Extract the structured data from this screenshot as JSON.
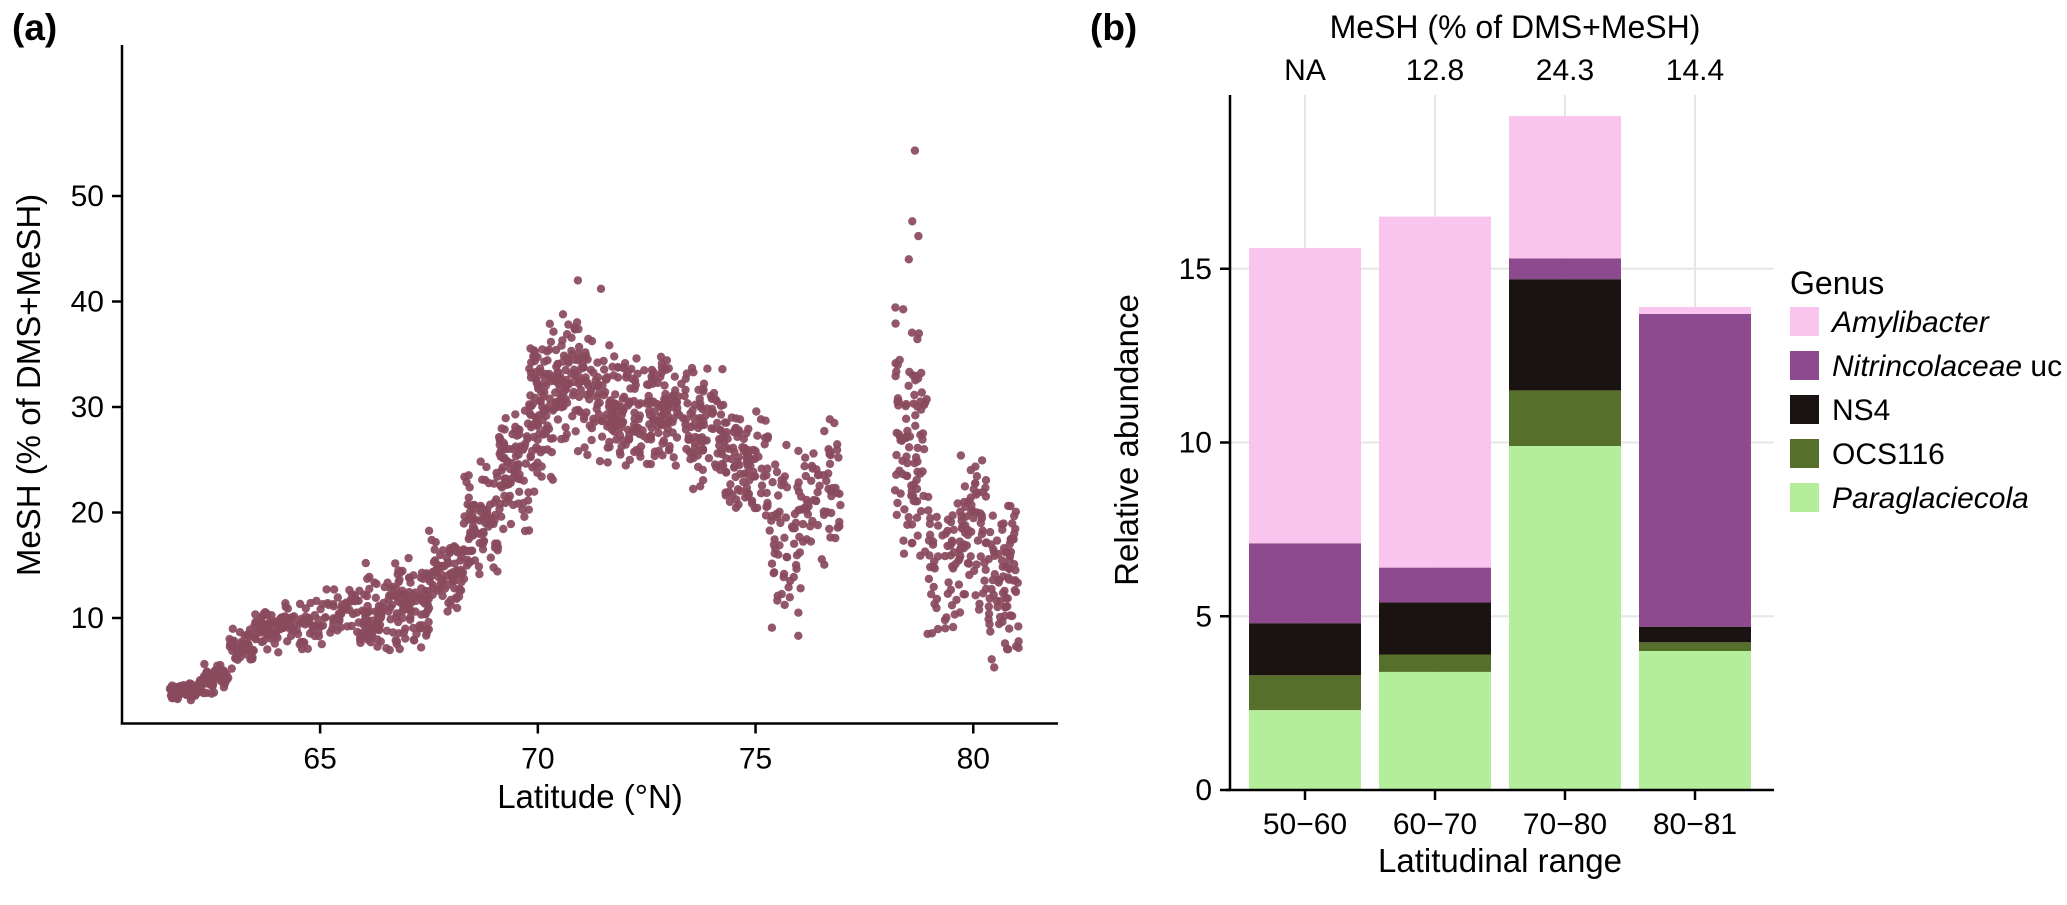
{
  "figure": {
    "panel_a_label": "(a)",
    "panel_b_label": "(b)"
  },
  "chart_data": [
    {
      "type": "scatter",
      "panel": "a",
      "title": "",
      "xlabel": "Latitude (°N)",
      "ylabel": "MeSH (% of DMS+MeSH)",
      "xlim": [
        60.45,
        81.9
      ],
      "ylim": [
        0,
        56
      ],
      "x_ticks": [
        65,
        70,
        75,
        80
      ],
      "y_ticks": [
        10,
        20,
        30,
        40,
        50
      ],
      "grid": false,
      "point_color": "#8a4a5e",
      "point_radius": 4.2,
      "seed": 42,
      "description": "Dense latitudinal transect of MeSH fraction; values rise from ~3% at 61.5°N to 25–40% at 70–75°N, become patchy 75–77°N, a gap 77–78.2°N, then highly variable columns 78–81°N with a maximum near 54% at ~78.7°N.",
      "cloud_segments": [
        {
          "x0": 61.55,
          "x1": 62.2,
          "yc": 3.0,
          "ys": 0.9,
          "n": 70
        },
        {
          "x0": 62.2,
          "x1": 62.9,
          "yc": 4.2,
          "ys": 1.6,
          "n": 55
        },
        {
          "x0": 62.9,
          "x1": 63.5,
          "yc": 7.2,
          "ys": 2.2,
          "n": 50
        },
        {
          "x0": 63.5,
          "x1": 64.2,
          "yc": 9.0,
          "ys": 2.4,
          "n": 55
        },
        {
          "x0": 64.2,
          "x1": 65.1,
          "yc": 9.3,
          "ys": 2.8,
          "n": 50
        },
        {
          "x0": 65.1,
          "x1": 65.9,
          "yc": 10.5,
          "ys": 3.2,
          "n": 45
        },
        {
          "x0": 65.9,
          "x1": 66.7,
          "yc": 10.0,
          "ys": 4.2,
          "n": 75
        },
        {
          "x0": 66.7,
          "x1": 67.5,
          "yc": 11.5,
          "ys": 4.8,
          "n": 90
        },
        {
          "x0": 67.5,
          "x1": 68.3,
          "yc": 14.5,
          "ys": 5.0,
          "n": 80
        },
        {
          "x0": 68.3,
          "x1": 69.1,
          "yc": 19.0,
          "ys": 6.0,
          "n": 85
        },
        {
          "x0": 69.1,
          "x1": 69.8,
          "yc": 24.0,
          "ys": 6.5,
          "n": 85
        },
        {
          "x0": 69.8,
          "x1": 70.35,
          "yc": 30.0,
          "ys": 9.0,
          "n": 95
        },
        {
          "x0": 70.35,
          "x1": 71.3,
          "yc": 32.0,
          "ys": 7.0,
          "n": 115
        },
        {
          "x0": 71.3,
          "x1": 72.3,
          "yc": 30.0,
          "ys": 6.5,
          "n": 115
        },
        {
          "x0": 72.3,
          "x1": 73.3,
          "yc": 29.5,
          "ys": 6.0,
          "n": 105
        },
        {
          "x0": 73.3,
          "x1": 74.3,
          "yc": 28.0,
          "ys": 6.5,
          "n": 95
        },
        {
          "x0": 74.3,
          "x1": 75.3,
          "yc": 24.5,
          "ys": 6.0,
          "n": 95
        },
        {
          "x0": 75.3,
          "x1": 76.1,
          "yc": 17.0,
          "ys": 10.0,
          "n": 65
        },
        {
          "x0": 76.1,
          "x1": 76.95,
          "yc": 22.0,
          "ys": 7.5,
          "n": 60
        },
        {
          "x0": 78.2,
          "x1": 78.95,
          "yc": 27.0,
          "ys": 13.0,
          "n": 95
        },
        {
          "x0": 78.95,
          "x1": 79.7,
          "yc": 14.0,
          "ys": 8.0,
          "n": 60
        },
        {
          "x0": 79.7,
          "x1": 80.35,
          "yc": 18.0,
          "ys": 8.5,
          "n": 65
        },
        {
          "x0": 80.35,
          "x1": 81.05,
          "yc": 14.0,
          "ys": 9.5,
          "n": 85
        }
      ],
      "outlier_points": [
        [
          78.66,
          54.3
        ],
        [
          78.6,
          47.6
        ],
        [
          78.74,
          46.2
        ],
        [
          78.52,
          44.0
        ],
        [
          70.92,
          42.0
        ],
        [
          71.45,
          41.2
        ],
        [
          66.05,
          15.2
        ],
        [
          61.6,
          2.4
        ]
      ]
    },
    {
      "type": "bar",
      "panel": "b",
      "stacked": true,
      "categories": [
        "50−60",
        "60−70",
        "70−80",
        "80−81"
      ],
      "series": [
        {
          "name": "Paraglaciecola",
          "italic": true,
          "color": "#b5ee9a",
          "values": [
            2.3,
            3.4,
            9.9,
            4.0
          ]
        },
        {
          "name": "OCS116",
          "italic": false,
          "color": "#566f2a",
          "values": [
            1.0,
            0.5,
            1.6,
            0.25
          ]
        },
        {
          "name": "NS4",
          "italic": false,
          "color": "#1b1212",
          "values": [
            1.5,
            1.5,
            3.2,
            0.45
          ]
        },
        {
          "name": "Nitrincolaceae uc",
          "italic": false,
          "color": "#8e4a8e",
          "values": [
            2.3,
            1.0,
            0.6,
            9.0
          ]
        },
        {
          "name": "Amylibacter",
          "italic": true,
          "color": "#f9c5ef",
          "values": [
            8.5,
            10.1,
            4.1,
            0.2
          ]
        }
      ],
      "totals": [
        15.6,
        16.5,
        19.35,
        13.9
      ],
      "top_axis": {
        "title": "MeSH (% of DMS+MeSH)",
        "values": [
          "NA",
          "12.8",
          "24.3",
          "14.4"
        ]
      },
      "xlabel": "Latitudinal range",
      "ylabel": "Relative abundance",
      "y_ticks": [
        0,
        5,
        10,
        15
      ],
      "ylim": [
        0,
        20
      ],
      "grid": true,
      "grid_color": "#e6e6e6",
      "legend": {
        "title": "Genus",
        "position": "right",
        "entries": [
          {
            "text": "Amylibacter",
            "suffix": "",
            "italic": true,
            "color": "#f9c5ef"
          },
          {
            "text": "Nitrincolaceae",
            "suffix": " uc",
            "italic": true,
            "color": "#8e4a8e"
          },
          {
            "text": "NS4",
            "suffix": "",
            "italic": false,
            "color": "#1b1212"
          },
          {
            "text": "OCS116",
            "suffix": "",
            "italic": false,
            "color": "#566f2a"
          },
          {
            "text": "Paraglaciecola",
            "suffix": "",
            "italic": true,
            "color": "#b5ee9a"
          }
        ]
      }
    }
  ]
}
